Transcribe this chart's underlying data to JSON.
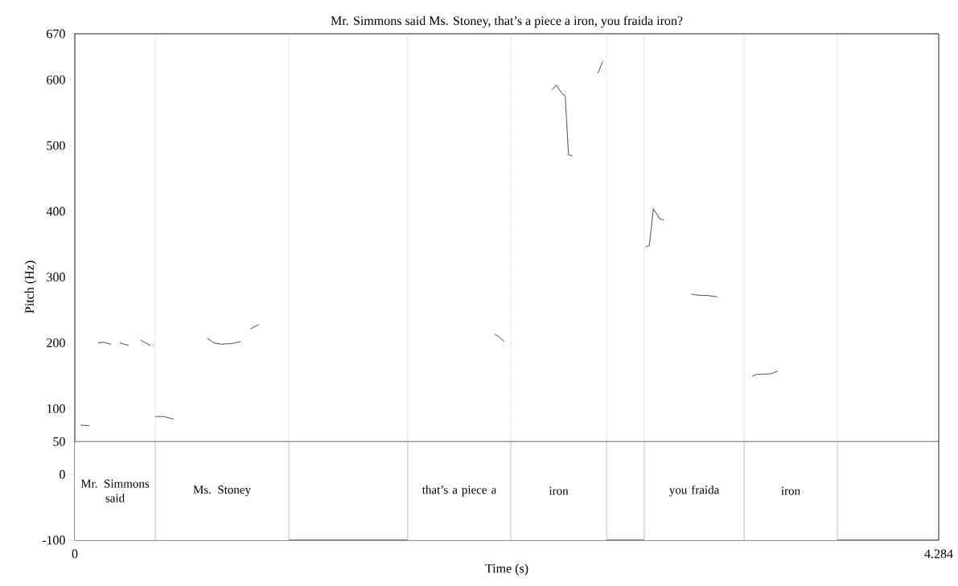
{
  "chart_data": {
    "type": "line",
    "title": "Mr. Simmons said Ms. Stoney, that’s a piece a iron, you fraida iron?",
    "xlabel": "Time (s)",
    "ylabel": "Pitch (Hz)",
    "xlim": [
      0,
      4.284
    ],
    "xticks": [
      0,
      4.284
    ],
    "ylim": [
      -100,
      670
    ],
    "yticks": [
      -100,
      0,
      50,
      100,
      200,
      300,
      400,
      500,
      600,
      670
    ],
    "series": [
      {
        "color": "#000000",
        "x": [
          0.028,
          0.072,
          0.09,
          0.116,
          0.14,
          0.18,
          0.2,
          0.223,
          0.267,
          0.3,
          0.327,
          0.375,
          0.39,
          0.4,
          0.44,
          0.49,
          0.6,
          0.658,
          0.69,
          0.726,
          0.78,
          0.822,
          0.85,
          0.87,
          0.913,
          1.5,
          2.082,
          2.1,
          2.13,
          2.3,
          2.365,
          2.388,
          2.418,
          2.432,
          2.448,
          2.468,
          2.55,
          2.594,
          2.618,
          2.7,
          2.831,
          2.849,
          2.869,
          2.9,
          2.92,
          3.0,
          3.057,
          3.106,
          3.139,
          3.186,
          3.3,
          3.358,
          3.378,
          3.451,
          3.485
        ],
        "values": [
          75,
          74,
          null,
          200,
          201,
          198,
          null,
          200,
          196,
          null,
          204,
          196,
          null,
          88,
          88,
          84,
          null,
          207,
          200,
          198,
          199,
          202,
          null,
          221,
          228,
          null,
          213,
          210,
          202,
          null,
          584,
          592,
          578,
          576,
          486,
          484,
          null,
          610,
          628,
          null,
          346,
          348,
          404,
          389,
          387,
          null,
          274,
          272,
          272,
          270,
          null,
          149,
          152,
          153,
          157
        ]
      }
    ],
    "ref_lines": [
      {
        "axis": "y",
        "value": 50
      },
      {
        "axis": "x",
        "value": 0.399
      },
      {
        "axis": "x",
        "value": 1.061
      },
      {
        "axis": "x",
        "value": 1.651
      },
      {
        "axis": "x",
        "value": 2.162
      },
      {
        "axis": "x",
        "value": 2.637
      },
      {
        "axis": "x",
        "value": 2.824
      },
      {
        "axis": "x",
        "value": 3.319
      },
      {
        "axis": "x",
        "value": 3.781
      }
    ],
    "bands": [
      {
        "axis": "x",
        "from": 0,
        "to": 0.399,
        "label": "Mr. Simmons said",
        "color": "#ffffff"
      },
      {
        "axis": "x",
        "from": 0.399,
        "to": 1.061,
        "label": "Ms. Stoney",
        "color": "#ffffff"
      },
      {
        "axis": "x",
        "from": 1.651,
        "to": 2.162,
        "label": "that’s a piece a",
        "color": "#ffffff"
      },
      {
        "axis": "x",
        "from": 2.162,
        "to": 2.637,
        "label": "iron",
        "color": "#ffffff"
      },
      {
        "axis": "x",
        "from": 2.824,
        "to": 3.319,
        "label": "you fraida",
        "color": "#ffffff"
      },
      {
        "axis": "x",
        "from": 3.319,
        "to": 3.781,
        "label": "iron",
        "color": "#ffffff"
      }
    ],
    "grid": false
  }
}
